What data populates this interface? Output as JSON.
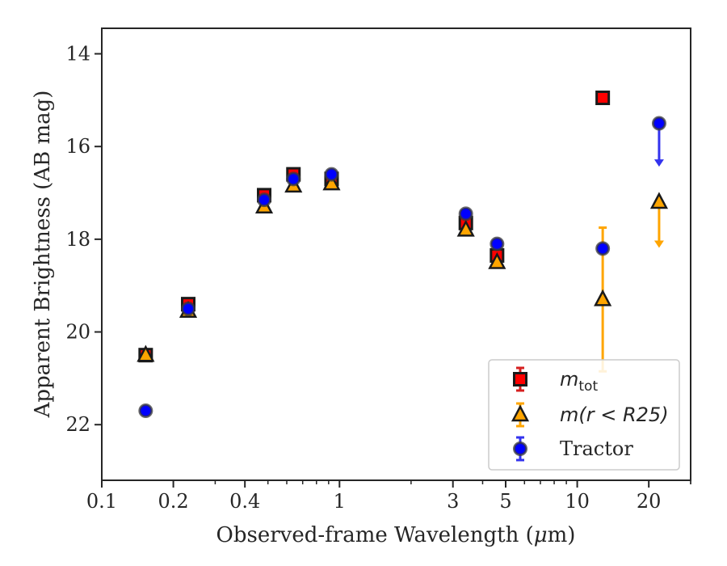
{
  "chart_data": {
    "type": "scatter",
    "xlabel_prefix": "Observed-frame Wavelength (",
    "xlabel_mu": "μ",
    "xlabel_suffix": "m)",
    "ylabel": "Apparent Brightness (AB mag)",
    "xscale": "log",
    "xlim": [
      0.1,
      30
    ],
    "ylim": [
      23.2,
      13.45
    ],
    "y_inverted": true,
    "x_ticks": [
      0.1,
      0.2,
      0.4,
      1,
      3,
      5,
      10,
      20
    ],
    "x_tick_labels": [
      "0.1",
      "0.2",
      "0.4",
      "1",
      "3",
      "5",
      "10",
      "20"
    ],
    "y_ticks": [
      14,
      16,
      18,
      20,
      22
    ],
    "y_tick_labels": [
      "14",
      "16",
      "18",
      "20",
      "22"
    ],
    "grid": false,
    "legend_position": "lower-right",
    "series": [
      {
        "key": "mtot",
        "marker": "square",
        "color": "#ff0000",
        "edgecolor": "#1a1a1a",
        "errcolor": "#d62020",
        "legend_main": "m",
        "legend_sub": "tot",
        "points": [
          {
            "x": 0.153,
            "y": 20.5
          },
          {
            "x": 0.231,
            "y": 19.4
          },
          {
            "x": 0.482,
            "y": 17.05
          },
          {
            "x": 0.64,
            "y": 16.6
          },
          {
            "x": 0.926,
            "y": 16.7
          },
          {
            "x": 3.4,
            "y": 17.65
          },
          {
            "x": 4.6,
            "y": 18.35
          },
          {
            "x": 12.8,
            "y": 14.95
          }
        ]
      },
      {
        "key": "mr25",
        "marker": "triangle",
        "color": "#ffa500",
        "edgecolor": "#1a1a1a",
        "errcolor": "#ffa500",
        "legend_text": "m(r < R25)",
        "points": [
          {
            "x": 0.153,
            "y": 20.5
          },
          {
            "x": 0.231,
            "y": 19.55
          },
          {
            "x": 0.482,
            "y": 17.3
          },
          {
            "x": 0.64,
            "y": 16.85
          },
          {
            "x": 0.926,
            "y": 16.8
          },
          {
            "x": 3.4,
            "y": 17.8
          },
          {
            "x": 4.6,
            "y": 18.5
          },
          {
            "x": 12.8,
            "y": 19.3,
            "yerr_low": 17.75,
            "yerr_high": 20.85
          },
          {
            "x": 22.1,
            "y": 17.2,
            "upper_limit_to": 18.15
          }
        ]
      },
      {
        "key": "tractor",
        "marker": "circle",
        "color": "#0000ff",
        "edgecolor": "#3a3a3a",
        "errcolor": "#3333ee",
        "legend_text": "Tractor",
        "points": [
          {
            "x": 0.153,
            "y": 21.7
          },
          {
            "x": 0.231,
            "y": 19.5
          },
          {
            "x": 0.482,
            "y": 17.15
          },
          {
            "x": 0.64,
            "y": 16.7
          },
          {
            "x": 0.926,
            "y": 16.6
          },
          {
            "x": 3.4,
            "y": 17.45
          },
          {
            "x": 4.6,
            "y": 18.1
          },
          {
            "x": 12.8,
            "y": 18.2
          },
          {
            "x": 22.1,
            "y": 15.5,
            "upper_limit_to": 16.4
          }
        ]
      }
    ]
  }
}
